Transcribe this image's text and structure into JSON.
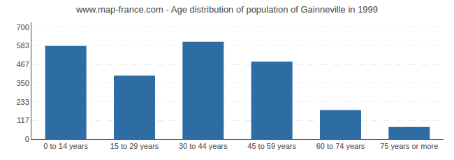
{
  "chart_data": {
    "type": "bar",
    "title": "www.map-france.com - Age distribution of population of Gainneville in 1999",
    "categories": [
      "0 to 14 years",
      "15 to 29 years",
      "30 to 44 years",
      "45 to 59 years",
      "60 to 74 years",
      "75 years or more"
    ],
    "values": [
      583,
      397,
      609,
      484,
      181,
      75
    ],
    "color": "#2e6da4",
    "ylim": [
      0,
      730
    ],
    "yticks": [
      0,
      117,
      233,
      350,
      467,
      583,
      700
    ],
    "grid": true
  }
}
